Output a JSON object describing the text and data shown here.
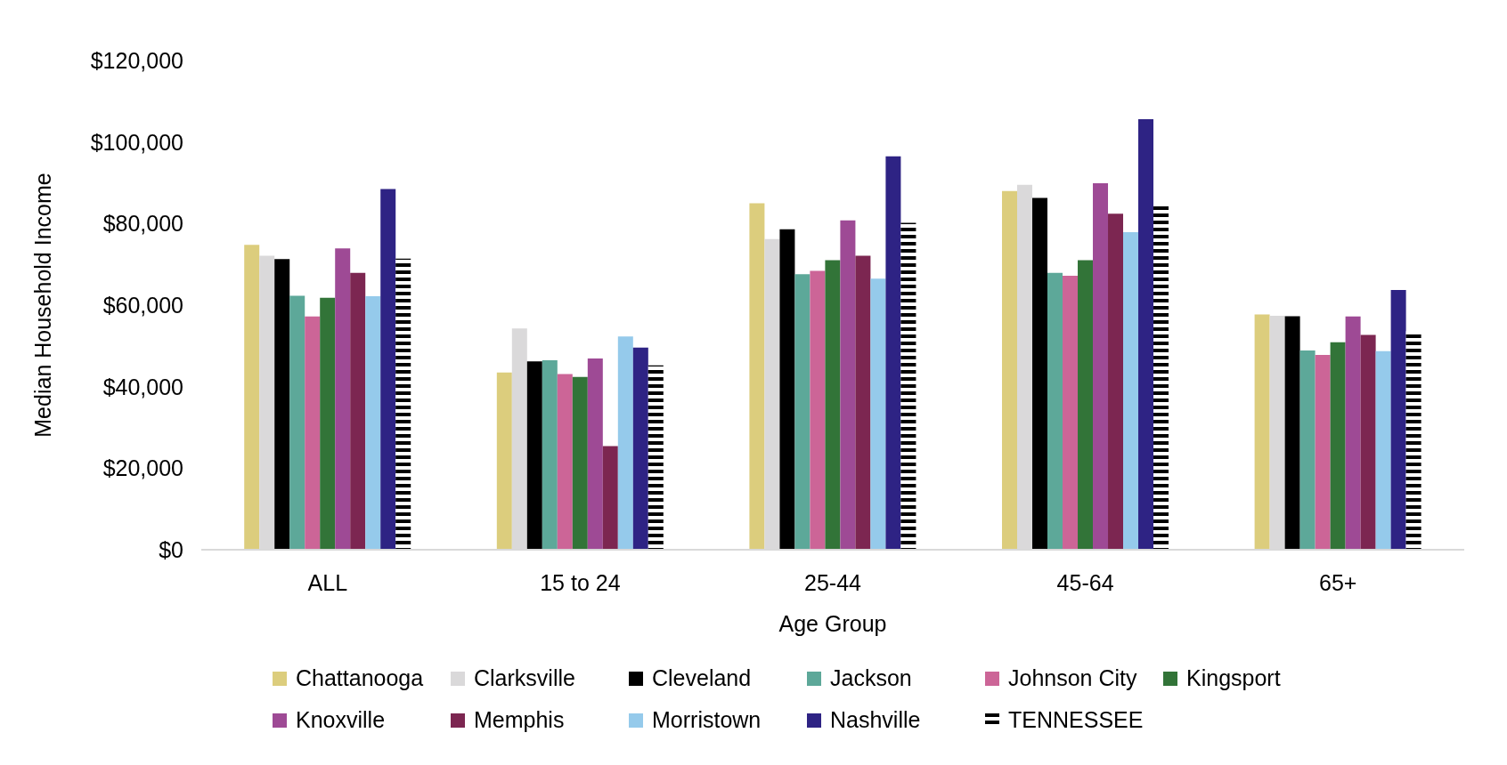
{
  "chart_data": {
    "type": "bar",
    "xlabel": "Age Group",
    "ylabel": "Median Household Income",
    "categories": [
      "ALL",
      "15 to 24",
      "25-44",
      "45-64",
      "65+"
    ],
    "series": [
      {
        "name": "Chattanooga",
        "color": "#dccd7d",
        "values": [
          74800,
          43500,
          85000,
          88000,
          57700
        ]
      },
      {
        "name": "Clarksville",
        "color": "#dad9da",
        "values": [
          72100,
          54300,
          76200,
          89500,
          57400
        ]
      },
      {
        "name": "Cleveland",
        "color": "#000000",
        "values": [
          71300,
          46200,
          78600,
          86300,
          57300
        ]
      },
      {
        "name": "Jackson",
        "color": "#5da899",
        "values": [
          62300,
          46500,
          67600,
          67900,
          48900
        ]
      },
      {
        "name": "Johnson City",
        "color": "#cc6597",
        "values": [
          57200,
          43100,
          68400,
          67200,
          47800
        ]
      },
      {
        "name": "Kingsport",
        "color": "#327438",
        "values": [
          61800,
          42400,
          71000,
          71000,
          50900
        ]
      },
      {
        "name": "Knoxville",
        "color": "#9e4a95",
        "values": [
          73900,
          46900,
          80800,
          89900,
          57200
        ]
      },
      {
        "name": "Memphis",
        "color": "#7c2651",
        "values": [
          67900,
          25400,
          72100,
          82400,
          52700
        ]
      },
      {
        "name": "Morristown",
        "color": "#95caeb",
        "values": [
          62200,
          52300,
          66500,
          77900,
          48700
        ]
      },
      {
        "name": "Nashville",
        "color": "#2e2384",
        "values": [
          88500,
          49600,
          96500,
          105600,
          63700
        ]
      },
      {
        "name": "TENNESSEE",
        "color": "#000000",
        "values": [
          71400,
          45200,
          80200,
          84800,
          53600
        ]
      }
    ],
    "ylim": [
      0,
      120000
    ],
    "yticks": [
      {
        "value": 0,
        "label": "$0"
      },
      {
        "value": 20000,
        "label": "$20,000"
      },
      {
        "value": 40000,
        "label": "$40,000"
      },
      {
        "value": 60000,
        "label": "$60,000"
      },
      {
        "value": 80000,
        "label": "$80,000"
      },
      {
        "value": 100000,
        "label": "$100,000"
      },
      {
        "value": 120000,
        "label": "$120,000"
      }
    ],
    "grid": false,
    "legend": "bottom"
  }
}
